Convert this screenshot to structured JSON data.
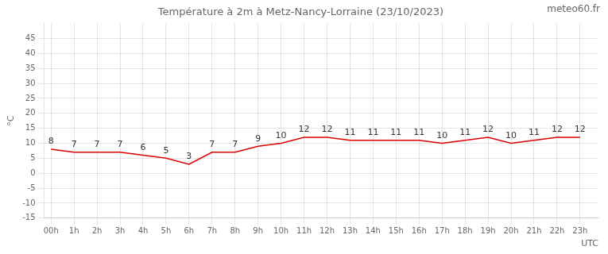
{
  "chart_data": {
    "type": "line",
    "title": "Température à 2m à Metz-Nancy-Lorraine (23/10/2023)",
    "ylabel": "°C",
    "xlabel": "UTC",
    "annotations": [
      "meteo60.fr"
    ],
    "x": [
      0,
      1,
      2,
      3,
      4,
      5,
      6,
      7,
      8,
      9,
      10,
      11,
      12,
      13,
      14,
      15,
      16,
      17,
      18,
      19,
      20,
      21,
      22,
      23
    ],
    "values": [
      8,
      7,
      7,
      7,
      6,
      5,
      3,
      7,
      7,
      9,
      10,
      12,
      12,
      11,
      11,
      11,
      11,
      10,
      11,
      12,
      10,
      11,
      12,
      12
    ],
    "color": "#dd0000",
    "data_labels": true,
    "grid": true,
    "xlim": [
      -0.3,
      23.8
    ],
    "xticks": [
      {
        "value": 0,
        "label": "00h"
      },
      {
        "value": 1,
        "label": "1h"
      },
      {
        "value": 2,
        "label": "2h"
      },
      {
        "value": 3,
        "label": "3h"
      },
      {
        "value": 4,
        "label": "4h"
      },
      {
        "value": 5,
        "label": "5h"
      },
      {
        "value": 6,
        "label": "6h"
      },
      {
        "value": 7,
        "label": "7h"
      },
      {
        "value": 8,
        "label": "8h"
      },
      {
        "value": 9,
        "label": "9h"
      },
      {
        "value": 10,
        "label": "10h"
      },
      {
        "value": 11,
        "label": "11h"
      },
      {
        "value": 12,
        "label": "12h"
      },
      {
        "value": 13,
        "label": "13h"
      },
      {
        "value": 14,
        "label": "14h"
      },
      {
        "value": 15,
        "label": "15h"
      },
      {
        "value": 16,
        "label": "16h"
      },
      {
        "value": 17,
        "label": "17h"
      },
      {
        "value": 18,
        "label": "18h"
      },
      {
        "value": 19,
        "label": "19h"
      },
      {
        "value": 20,
        "label": "20h"
      },
      {
        "value": 21,
        "label": "21h"
      },
      {
        "value": 22,
        "label": "22h"
      },
      {
        "value": 23,
        "label": "23h"
      }
    ],
    "ylim": [
      -15,
      50
    ],
    "yticks": [
      -15,
      -10,
      -5,
      0,
      5,
      10,
      15,
      20,
      25,
      30,
      35,
      40,
      45
    ]
  }
}
